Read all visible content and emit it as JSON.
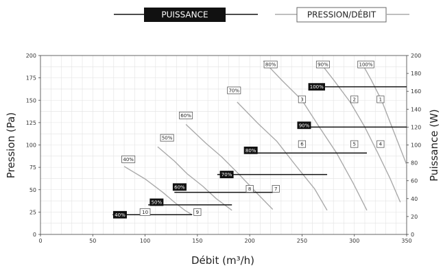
{
  "chart_data": {
    "type": "line",
    "legend": {
      "power_label": "PUISSANCE",
      "pressure_label": "PRESSION/DÉBIT",
      "position": "top"
    },
    "xlabel": "Débit (m³/h)",
    "ylabel": "Pression (Pa)",
    "y2label": "Puissance (W)",
    "xlim": [
      0,
      350
    ],
    "ylim": [
      0,
      200
    ],
    "y2lim": [
      0,
      200
    ],
    "x_ticks": [
      0,
      50,
      100,
      150,
      200,
      250,
      300,
      350
    ],
    "y_ticks": [
      0,
      25,
      50,
      75,
      100,
      125,
      150,
      175,
      200
    ],
    "y2_ticks": [
      0,
      20,
      40,
      60,
      80,
      100,
      120,
      140,
      160,
      180,
      200
    ],
    "grid": true,
    "colors": {
      "pressure": "#aaaaaa",
      "power": "#111111",
      "grid": "#e2e2e2",
      "axis": "#444444"
    },
    "pressure_curves": [
      {
        "name": "40%",
        "points": [
          [
            80,
            76
          ],
          [
            100,
            62
          ],
          [
            117,
            47
          ],
          [
            128,
            36
          ],
          [
            138,
            27
          ],
          [
            145,
            22
          ]
        ]
      },
      {
        "name": "50%",
        "points": [
          [
            112,
            98
          ],
          [
            128,
            82
          ],
          [
            140,
            68
          ],
          [
            155,
            54
          ],
          [
            168,
            40
          ],
          [
            183,
            27
          ]
        ]
      },
      {
        "name": "60%",
        "points": [
          [
            139,
            123
          ],
          [
            158,
            102
          ],
          [
            173,
            87
          ],
          [
            190,
            67
          ],
          [
            207,
            46
          ],
          [
            222,
            28
          ]
        ]
      },
      {
        "name": "70%",
        "points": [
          [
            188,
            148
          ],
          [
            208,
            124
          ],
          [
            226,
            104
          ],
          [
            244,
            77
          ],
          [
            262,
            51
          ],
          [
            274,
            27
          ]
        ]
      },
      {
        "name": "80%",
        "points": [
          [
            213,
            194
          ],
          [
            231,
            172
          ],
          [
            250,
            150
          ],
          [
            266,
            121
          ],
          [
            283,
            91
          ],
          [
            299,
            57
          ],
          [
            312,
            27
          ]
        ]
      },
      {
        "name": "90%",
        "points": [
          [
            266,
            194
          ],
          [
            280,
            173
          ],
          [
            296,
            148
          ],
          [
            310,
            120
          ],
          [
            322,
            92
          ],
          [
            334,
            63
          ],
          [
            344,
            36
          ]
        ]
      },
      {
        "name": "100%",
        "points": [
          [
            306,
            194
          ],
          [
            316,
            173
          ],
          [
            326,
            150
          ],
          [
            336,
            120
          ],
          [
            346,
            90
          ],
          [
            350,
            78
          ]
        ]
      }
    ],
    "power_lines": [
      {
        "name": "40%",
        "y": 22,
        "x_start": 69,
        "x_end": 145
      },
      {
        "name": "50%",
        "y": 33,
        "x_start": 103,
        "x_end": 183
      },
      {
        "name": "60%",
        "y": 47,
        "x_start": 128,
        "x_end": 222
      },
      {
        "name": "70%",
        "y": 67,
        "x_start": 169,
        "x_end": 274
      },
      {
        "name": "80%",
        "y": 91,
        "x_start": 196,
        "x_end": 312
      },
      {
        "name": "90%",
        "y": 120,
        "x_start": 247,
        "x_end": 350
      },
      {
        "name": "100%",
        "y": 165,
        "x_start": 258,
        "x_end": 350
      }
    ],
    "pressure_labels": [
      {
        "text": "40%",
        "x": 84,
        "y": 84
      },
      {
        "text": "50%",
        "x": 121,
        "y": 108
      },
      {
        "text": "60%",
        "x": 139,
        "y": 133
      },
      {
        "text": "70%",
        "x": 185,
        "y": 161
      },
      {
        "text": "80%",
        "x": 220,
        "y": 190
      },
      {
        "text": "90%",
        "x": 270,
        "y": 190
      },
      {
        "text": "100%",
        "x": 311,
        "y": 190
      }
    ],
    "power_labels": [
      {
        "text": "40%",
        "x": 76,
        "y": 22
      },
      {
        "text": "50%",
        "x": 111,
        "y": 36
      },
      {
        "text": "60%",
        "x": 133,
        "y": 53
      },
      {
        "text": "70%",
        "x": 178,
        "y": 67
      },
      {
        "text": "80%",
        "x": 201,
        "y": 94
      },
      {
        "text": "90%",
        "x": 252,
        "y": 122
      },
      {
        "text": "100%",
        "x": 264,
        "y": 165
      }
    ],
    "markers": [
      {
        "text": "1",
        "x": 325,
        "y": 151
      },
      {
        "text": "2",
        "x": 300,
        "y": 151
      },
      {
        "text": "3",
        "x": 250,
        "y": 151
      },
      {
        "text": "4",
        "x": 325,
        "y": 101
      },
      {
        "text": "5",
        "x": 300,
        "y": 101
      },
      {
        "text": "6",
        "x": 250,
        "y": 101
      },
      {
        "text": "7",
        "x": 225,
        "y": 51
      },
      {
        "text": "8",
        "x": 200,
        "y": 51
      },
      {
        "text": "9",
        "x": 150,
        "y": 25
      },
      {
        "text": "10",
        "x": 100,
        "y": 25
      }
    ]
  }
}
